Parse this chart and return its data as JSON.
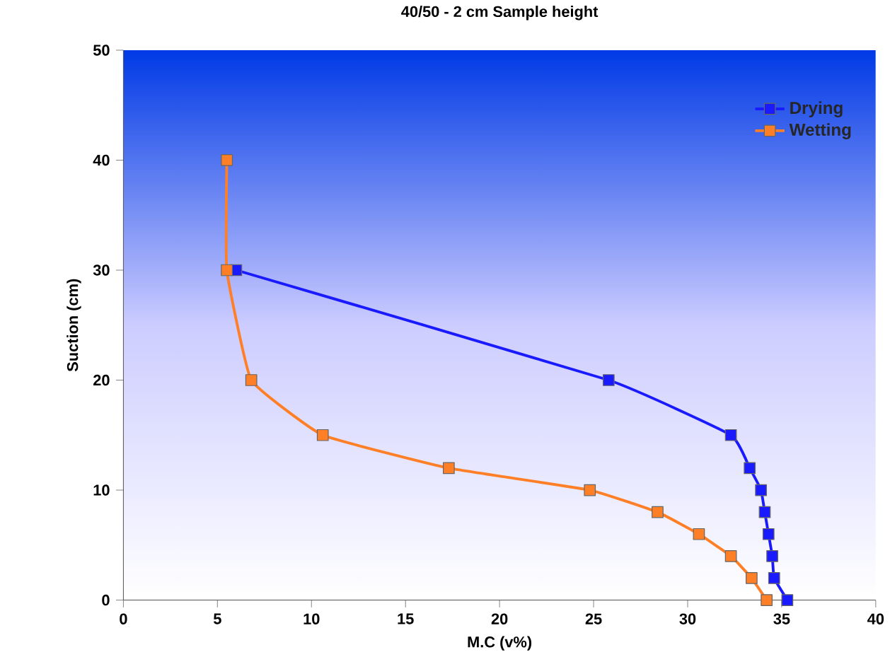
{
  "chart_data": {
    "type": "line",
    "title": "40/50 - 2 cm Sample height",
    "xlabel": "M.C (v%)",
    "ylabel": "Suction (cm)",
    "xlim": [
      0,
      40
    ],
    "xticks": [
      0,
      5,
      10,
      15,
      20,
      25,
      30,
      35,
      40
    ],
    "ylim": [
      0,
      50
    ],
    "yticks": [
      0,
      10,
      20,
      30,
      40,
      50
    ],
    "grid": false,
    "legend": "top right",
    "marker": "square",
    "line_style": "solid",
    "series": [
      {
        "name": "Drying",
        "color": "#1a1aff",
        "x": [
          35.3,
          34.6,
          34.5,
          34.3,
          34.1,
          33.9,
          33.3,
          32.3,
          25.8,
          6.0
        ],
        "values": [
          0,
          2,
          4,
          6,
          8,
          10,
          12,
          15,
          20,
          30
        ]
      },
      {
        "name": "Wetting",
        "color": "#ff7f27",
        "x": [
          34.2,
          33.4,
          32.3,
          30.6,
          28.4,
          24.8,
          17.3,
          10.6,
          6.8,
          5.5,
          5.5
        ],
        "values": [
          0,
          2,
          4,
          6,
          8,
          10,
          12,
          15,
          20,
          30,
          40
        ]
      }
    ]
  }
}
